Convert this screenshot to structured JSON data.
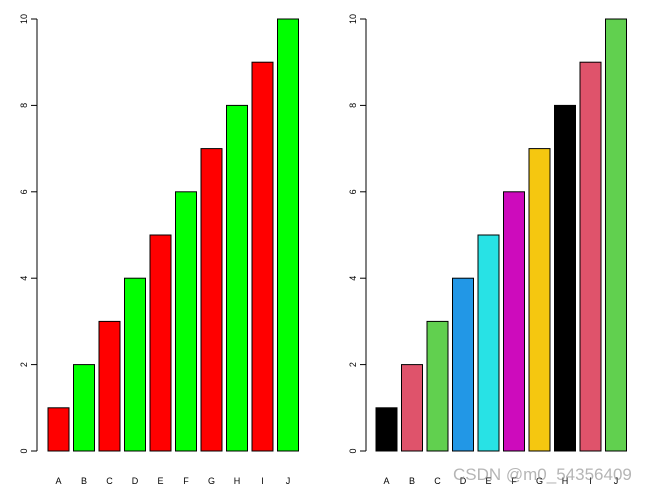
{
  "chart_data": [
    {
      "type": "bar",
      "categories": [
        "A",
        "B",
        "C",
        "D",
        "E",
        "F",
        "G",
        "H",
        "I",
        "J"
      ],
      "values": [
        1,
        2,
        3,
        4,
        5,
        6,
        7,
        8,
        9,
        10
      ],
      "colors": [
        "#ff0000",
        "#00ff00",
        "#ff0000",
        "#00ff00",
        "#ff0000",
        "#00ff00",
        "#ff0000",
        "#00ff00",
        "#ff0000",
        "#00ff00"
      ],
      "yticks": [
        0,
        2,
        4,
        6,
        8,
        10
      ],
      "ylim": [
        0,
        10
      ],
      "grid": false,
      "title": "",
      "xlabel": "",
      "ylabel": ""
    },
    {
      "type": "bar",
      "categories": [
        "A",
        "B",
        "C",
        "D",
        "E",
        "F",
        "G",
        "H",
        "I",
        "J"
      ],
      "values": [
        1,
        2,
        3,
        4,
        5,
        6,
        7,
        8,
        9,
        10
      ],
      "colors": [
        "#000000",
        "#df536b",
        "#61d04f",
        "#2297e6",
        "#28e2e5",
        "#cd0bbc",
        "#f5c710",
        "#000000",
        "#df536b",
        "#61d04f"
      ],
      "yticks": [
        0,
        2,
        4,
        6,
        8,
        10
      ],
      "ylim": [
        0,
        10
      ],
      "grid": false,
      "title": "",
      "xlabel": "",
      "ylabel": ""
    }
  ],
  "watermark": "CSDN @m0_54356409"
}
